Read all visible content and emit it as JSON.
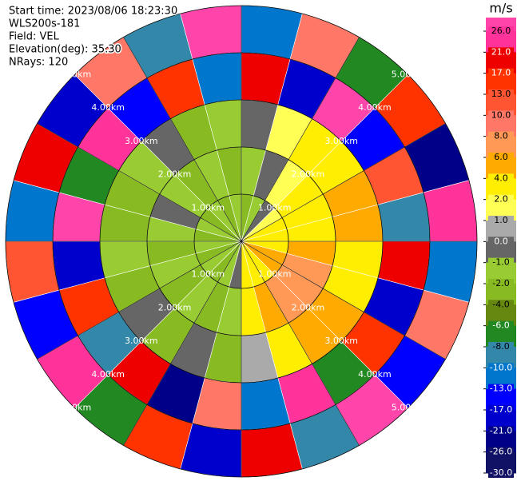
{
  "chart_data": {
    "type": "polar_heatmap",
    "header": [
      "Start time: 2023/08/06 18:23:30",
      "WLS200s-181",
      "Field: VEL",
      "Elevation(deg): 35.30",
      "NRays: 120"
    ],
    "azimuths": [
      0,
      15,
      30,
      45,
      60,
      75,
      90,
      105,
      120,
      135,
      150,
      165,
      180,
      195,
      210,
      225,
      240,
      255,
      270,
      285,
      300,
      315,
      330,
      345
    ],
    "gate_edges": [
      0,
      1,
      2,
      3,
      4,
      5
    ],
    "values": [
      [
        -3,
        -2,
        -1,
        17,
        -13
      ],
      [
        -2,
        -1,
        1,
        -21,
        8
      ],
      [
        -1,
        1,
        3,
        26,
        -8
      ],
      [
        1,
        3,
        3,
        -17,
        13
      ],
      [
        2,
        3,
        5,
        10,
        -26
      ],
      [
        3,
        3,
        5,
        -10,
        21
      ],
      [
        3,
        5,
        3,
        17,
        -13
      ],
      [
        5,
        7,
        3,
        -21,
        8
      ],
      [
        5,
        7,
        5,
        13,
        -17
      ],
      [
        3,
        7,
        5,
        -8,
        26
      ],
      [
        3,
        5,
        3,
        21,
        -10
      ],
      [
        3,
        3,
        0.5,
        -13,
        17
      ],
      [
        -0.5,
        -1.5,
        -3,
        8,
        -21
      ],
      [
        -2,
        -3,
        -0.5,
        -26,
        13
      ],
      [
        -3,
        -2,
        -3,
        17,
        -8
      ],
      [
        -2,
        -3,
        -0.5,
        -10,
        21
      ],
      [
        -3,
        -2,
        -3,
        13,
        -17
      ],
      [
        -2,
        -3,
        -2,
        -21,
        10
      ],
      [
        -3,
        -2,
        -3,
        26,
        -13
      ],
      [
        -2,
        -0.5,
        -3,
        -8,
        17
      ],
      [
        -3,
        -2,
        -2,
        21,
        -21
      ],
      [
        -2,
        -3,
        -0.5,
        -17,
        8
      ],
      [
        -3,
        -2,
        -3,
        13,
        -10
      ],
      [
        -2,
        -3,
        -2,
        -13,
        26
      ]
    ],
    "rings": [
      {
        "value": 1,
        "label": "1.00km"
      },
      {
        "value": 2,
        "label": "2.00km"
      },
      {
        "value": 3,
        "label": "3.00km"
      },
      {
        "value": 4,
        "label": "4.00km"
      },
      {
        "value": 5,
        "label": "5.00km"
      }
    ],
    "colorbar": {
      "unit": "m/s",
      "ticks": [
        {
          "value": 26,
          "label": "26.0"
        },
        {
          "value": 21,
          "label": "21.0"
        },
        {
          "value": 17,
          "label": "17.0"
        },
        {
          "value": 13,
          "label": "13.0"
        },
        {
          "value": 10,
          "label": "10.0"
        },
        {
          "value": 8,
          "label": "8.0"
        },
        {
          "value": 6,
          "label": "6.0"
        },
        {
          "value": 4,
          "label": "4.0"
        },
        {
          "value": 2,
          "label": "2.0"
        },
        {
          "value": 1,
          "label": "1.0"
        },
        {
          "value": 0,
          "label": "0.0"
        },
        {
          "value": -1,
          "label": "-1.0"
        },
        {
          "value": -2,
          "label": "-2.0"
        },
        {
          "value": -4,
          "label": "-4.0"
        },
        {
          "value": -6,
          "label": "-6.0"
        },
        {
          "value": -8,
          "label": "-8.0"
        },
        {
          "value": -10,
          "label": "-10.0"
        },
        {
          "value": -13,
          "label": "-13.0"
        },
        {
          "value": -17,
          "label": "-17.0"
        },
        {
          "value": -21,
          "label": "-21.0"
        },
        {
          "value": -26,
          "label": "-26.0"
        },
        {
          "value": -30,
          "label": "-30.0"
        }
      ],
      "colors": [
        "#ff44aa",
        "#ff3399",
        "#ee0000",
        "#ff3300",
        "#ff5533",
        "#ff7766",
        "#ff9955",
        "#ffaa00",
        "#ffee00",
        "#ffff55",
        "#aaaaaa",
        "#666666",
        "#99cc33",
        "#88bb22",
        "#668811",
        "#228822",
        "#3388aa",
        "#0077cc",
        "#0000ff",
        "#0000cc",
        "#000088",
        "#111166"
      ]
    }
  }
}
